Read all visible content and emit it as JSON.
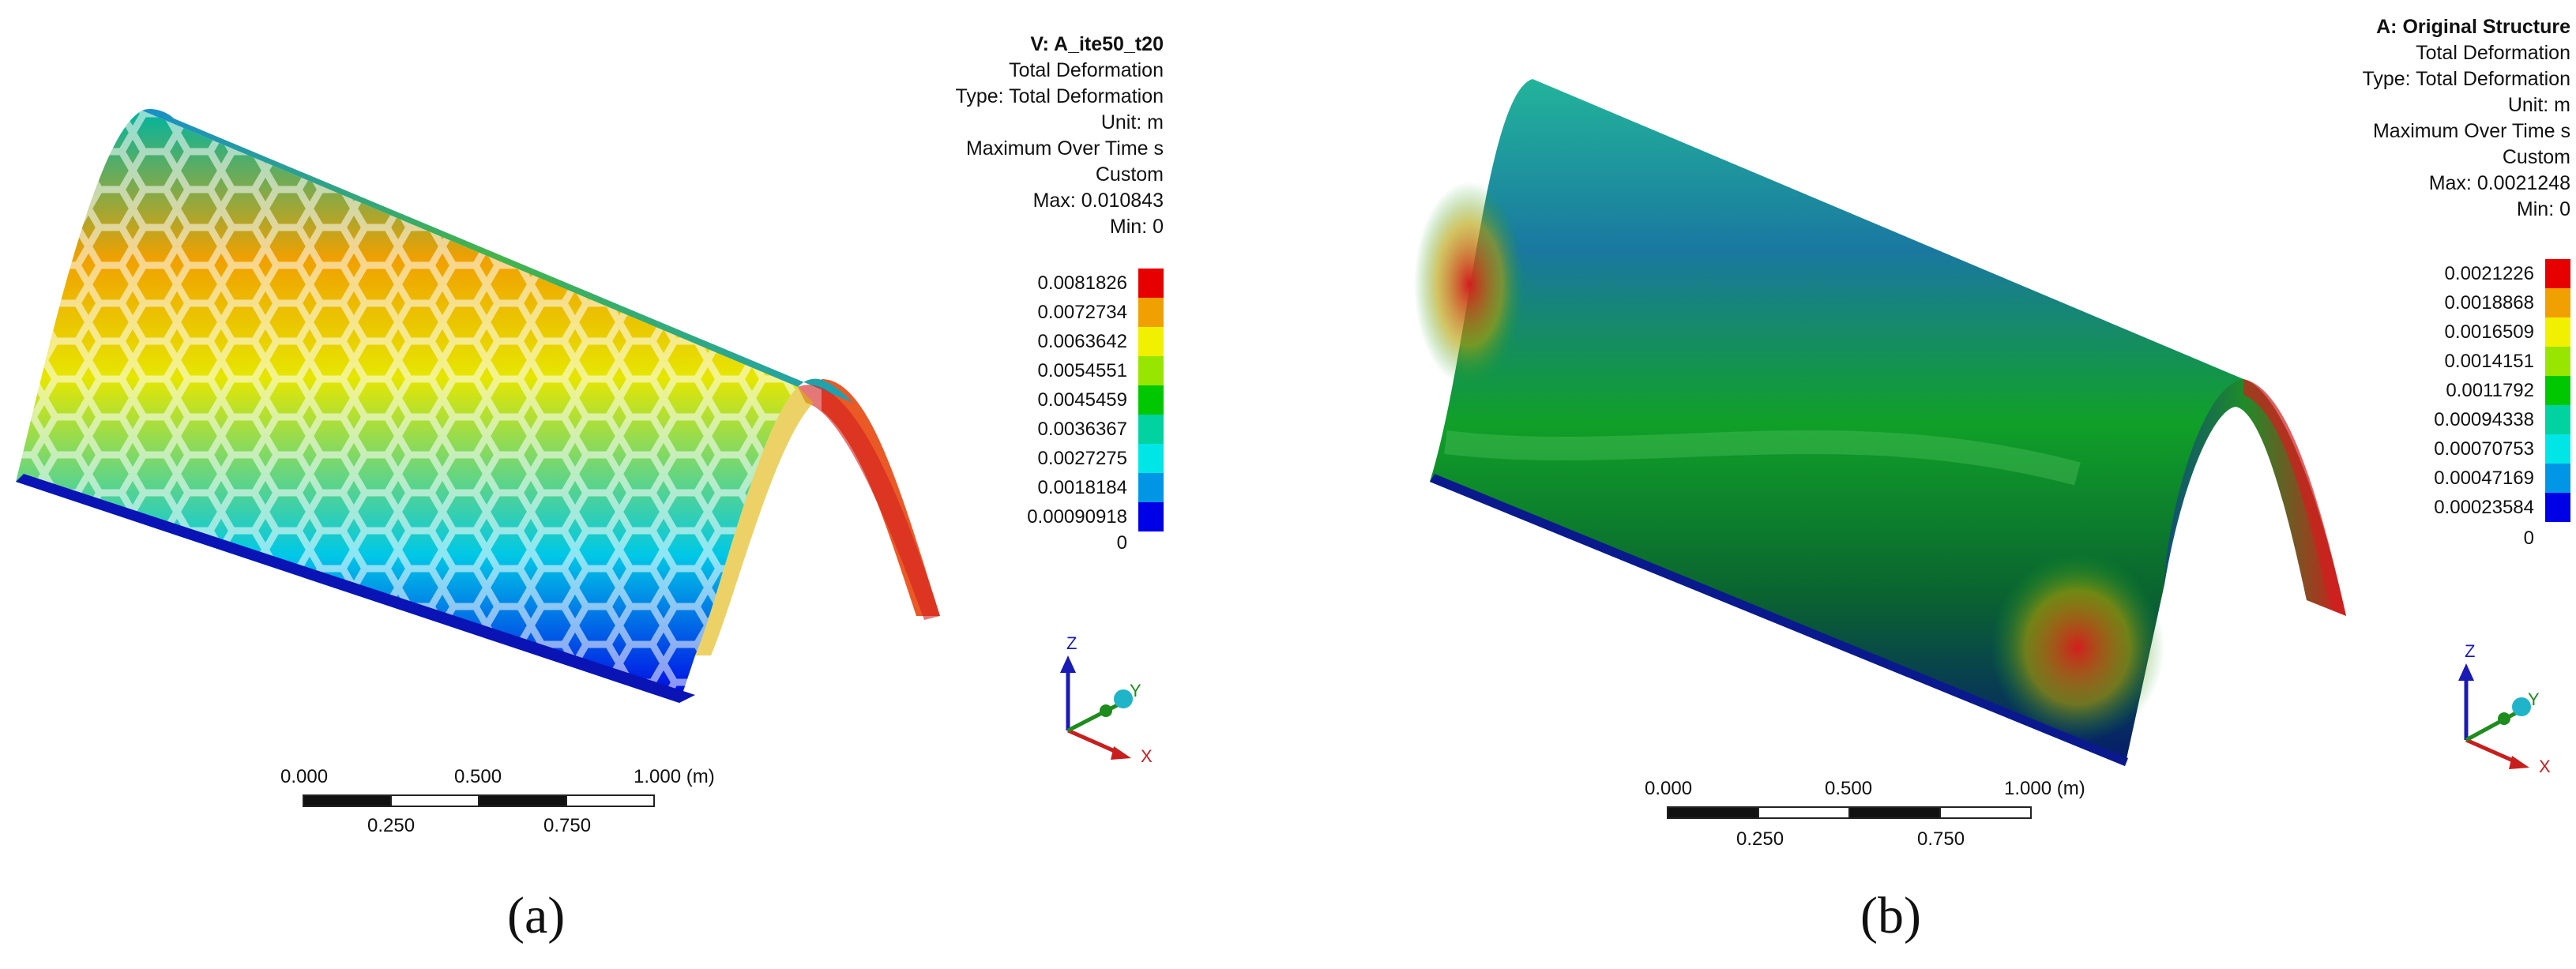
{
  "panel_a": {
    "label": "(a)",
    "header": {
      "title": "V: A_ite50_t20",
      "lines": [
        "Total Deformation",
        "Type: Total Deformation",
        "Unit: m",
        "Maximum Over Time s",
        "Custom",
        "Max: 0.010843",
        "Min: 0"
      ]
    },
    "legend": [
      "0.0081826",
      "0.0072734",
      "0.0063642",
      "0.0054551",
      "0.0045459",
      "0.0036367",
      "0.0027275",
      "0.0018184",
      "0.00090918"
    ],
    "legend_zero": "0",
    "scale": {
      "top": [
        "0.000",
        "0.500",
        "1.000 (m)"
      ],
      "bottom": [
        "0.250",
        "0.750"
      ]
    },
    "axes": {
      "z": "Z",
      "y": "Y",
      "x": "X"
    }
  },
  "panel_b": {
    "label": "(b)",
    "header": {
      "title": "A: Original Structure",
      "lines": [
        "Total Deformation",
        "Type: Total Deformation",
        "Unit: m",
        "Maximum Over Time s",
        "Custom",
        "Max: 0.0021248",
        "Min: 0"
      ]
    },
    "legend": [
      "0.0021226",
      "0.0018868",
      "0.0016509",
      "0.0014151",
      "0.0011792",
      "0.00094338",
      "0.00070753",
      "0.00047169",
      "0.00023584"
    ],
    "legend_zero": "0",
    "scale": {
      "top": [
        "0.000",
        "0.500",
        "1.000 (m)"
      ],
      "bottom": [
        "0.250",
        "0.750"
      ]
    },
    "axes": {
      "z": "Z",
      "y": "Y",
      "x": "X"
    }
  },
  "colors": {
    "contour": [
      "#e60000",
      "#f0a000",
      "#f0f000",
      "#98e600",
      "#00c800",
      "#00d2a0",
      "#00e6e6",
      "#0096e6",
      "#0000e6"
    ]
  }
}
